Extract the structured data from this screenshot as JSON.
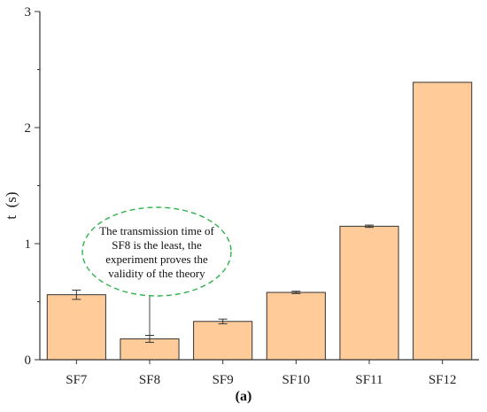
{
  "chart_data": {
    "type": "bar",
    "categories": [
      "SF7",
      "SF8",
      "SF9",
      "SF10",
      "SF11",
      "SF12"
    ],
    "values": [
      0.56,
      0.18,
      0.33,
      0.58,
      1.15,
      2.39
    ],
    "errors": [
      0.04,
      0.03,
      0.02,
      0.01,
      0.01,
      0
    ],
    "ylabel": "t  (s)",
    "xlabel": "",
    "ylim": [
      0,
      3
    ],
    "yticks": [
      0,
      1,
      2,
      3
    ],
    "bar_color": "#FFCC99",
    "bar_edge_color": "#333333",
    "grid": false,
    "annotation": {
      "lines": [
        "The transmission time of",
        "SF8 is the least, the",
        "experiment proves the",
        "validity of the theory"
      ],
      "target_category": "SF8",
      "ellipse_color": "#2DB34A"
    },
    "panel_label": "(a)"
  }
}
